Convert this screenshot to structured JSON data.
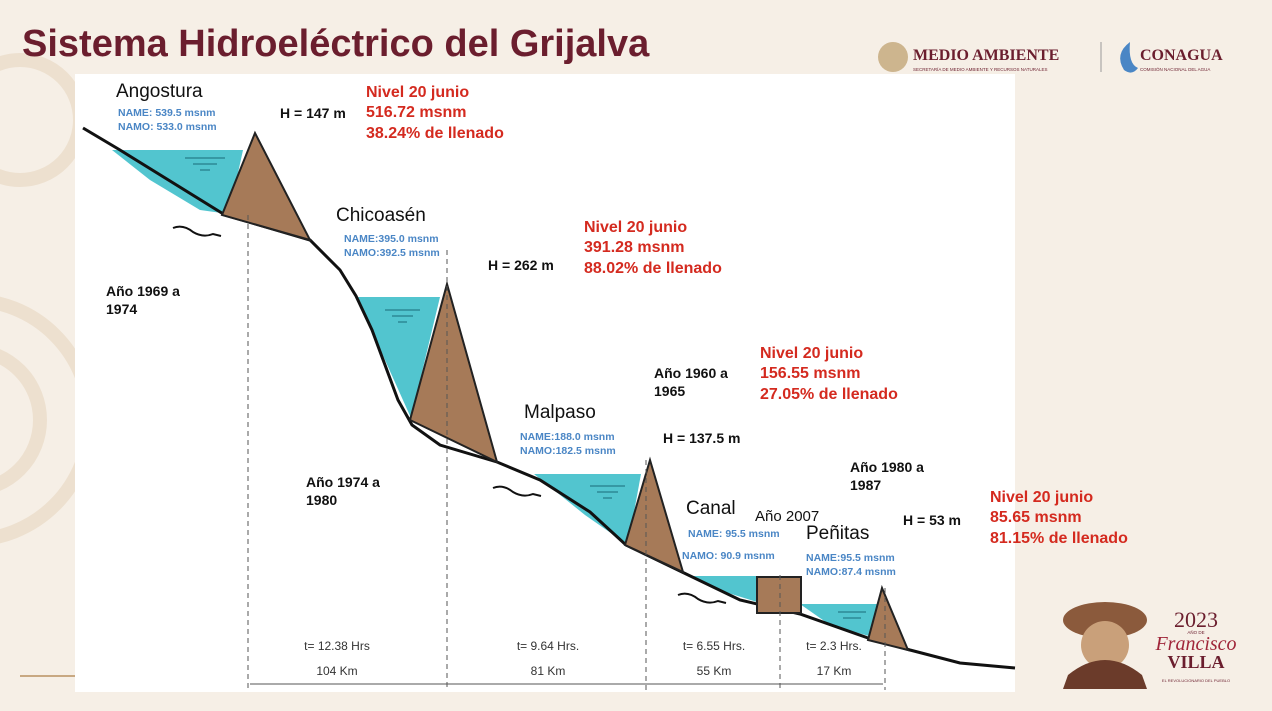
{
  "header": {
    "title": "Sistema Hidroeléctrico del Grijalva",
    "logos": {
      "medio_ambiente": "MEDIO AMBIENTE",
      "medio_ambiente_sub": "SECRETARÍA DE MEDIO AMBIENTE Y RECURSOS NATURALES",
      "conagua": "CONAGUA",
      "conagua_sub": "COMISIÓN NACIONAL DEL AGUA"
    }
  },
  "dams": [
    {
      "name": "Angostura",
      "name_level": "NAME: 539.5  msnm",
      "namo_level": "NAMO: 533.0  msnm",
      "height": "H = 147 m",
      "level_title": "Nivel 20 junio",
      "level": "516.72 msnm",
      "fill": "38.24% de llenado",
      "years": [
        "Año 1969 a",
        "1974"
      ]
    },
    {
      "name": "Chicoasén",
      "name_level": "NAME:395.0  msnm",
      "namo_level": "NAMO:392.5  msnm",
      "height": "H = 262 m",
      "level_title": "Nivel 20 junio",
      "level": "391.28 msnm",
      "fill": "88.02% de llenado",
      "years": [
        "Año 1974 a",
        "1980"
      ]
    },
    {
      "name": "Malpaso",
      "name_level": "NAME:188.0  msnm",
      "namo_level": "NAMO:182.5  msnm",
      "height": "H = 137.5 m",
      "level_title": "Nivel 20 junio",
      "level": "156.55 msnm",
      "fill": "27.05% de llenado",
      "years": [
        "Año 1960 a",
        "1965"
      ]
    },
    {
      "name": "Canal",
      "name_level": "NAME: 95.5 msnm",
      "namo_level": "NAMO: 90.9  msnm",
      "years": [
        "Año 2007"
      ]
    },
    {
      "name": "Peñitas",
      "name_level": "NAME:95.5 msnm",
      "namo_level": "NAMO:87.4 msnm",
      "height": "H = 53 m",
      "level_title": "Nivel 20 junio",
      "level": "85.65 msnm",
      "fill": "81.15% de llenado",
      "years": [
        "Año 1980 a",
        "1987"
      ]
    }
  ],
  "segments": [
    {
      "time": "t= 12.38 Hrs",
      "distance": "104 Km"
    },
    {
      "time": "t= 9.64 Hrs.",
      "distance": "81 Km"
    },
    {
      "time": "t= 6.55 Hrs.",
      "distance": "55 Km"
    },
    {
      "time": "t= 2.3 Hrs.",
      "distance": "17 Km"
    }
  ],
  "badge": {
    "year": "2023",
    "prefix": "AÑO DE",
    "name1": "Francisco",
    "name2": "VILLA",
    "subtitle": "EL REVOLUCIONARIO DEL PUEBLO"
  }
}
